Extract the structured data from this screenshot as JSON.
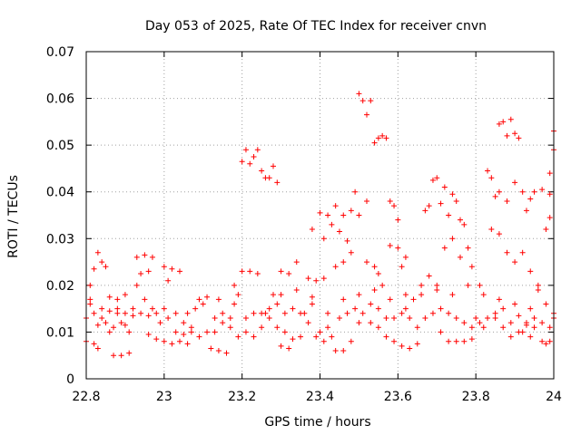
{
  "chart_data": {
    "type": "scatter",
    "title": "Day 053 of 2025, Rate Of TEC Index for receiver cnvn",
    "xlabel": "GPS time / hours",
    "ylabel": "ROTI / TECUs",
    "xlim": [
      22.8,
      24
    ],
    "ylim": [
      0,
      0.07
    ],
    "x_ticks": [
      {
        "v": 22.8,
        "label": "22.8"
      },
      {
        "v": 23,
        "label": "23"
      },
      {
        "v": 23.2,
        "label": "23.2"
      },
      {
        "v": 23.4,
        "label": "23.4"
      },
      {
        "v": 23.6,
        "label": "23.6"
      },
      {
        "v": 23.8,
        "label": "23.8"
      },
      {
        "v": 24,
        "label": "24"
      }
    ],
    "y_ticks": [
      {
        "v": 0,
        "label": "0"
      },
      {
        "v": 0.01,
        "label": "0.01"
      },
      {
        "v": 0.02,
        "label": "0.02"
      },
      {
        "v": 0.03,
        "label": "0.03"
      },
      {
        "v": 0.04,
        "label": "0.04"
      },
      {
        "v": 0.05,
        "label": "0.05"
      },
      {
        "v": 0.06,
        "label": "0.06"
      },
      {
        "v": 0.07,
        "label": "0.07"
      }
    ],
    "grid": true,
    "marker": "plus",
    "color": "#ff0000",
    "points": [
      [
        22.8,
        0.008
      ],
      [
        22.81,
        0.02
      ],
      [
        22.82,
        0.0235
      ],
      [
        22.83,
        0.027
      ],
      [
        22.84,
        0.025
      ],
      [
        22.85,
        0.024
      ],
      [
        22.83,
        0.0065
      ],
      [
        22.82,
        0.0075
      ],
      [
        22.8,
        0.013
      ],
      [
        22.82,
        0.014
      ],
      [
        22.84,
        0.015
      ],
      [
        22.86,
        0.0145
      ],
      [
        22.88,
        0.015
      ],
      [
        22.81,
        0.016
      ],
      [
        22.83,
        0.0115
      ],
      [
        22.85,
        0.012
      ],
      [
        22.87,
        0.011
      ],
      [
        22.89,
        0.012
      ],
      [
        22.91,
        0.01
      ],
      [
        22.86,
        0.0175
      ],
      [
        22.88,
        0.017
      ],
      [
        22.9,
        0.018
      ],
      [
        22.87,
        0.005
      ],
      [
        22.89,
        0.005
      ],
      [
        22.91,
        0.0055
      ],
      [
        22.9,
        0.014
      ],
      [
        22.92,
        0.0135
      ],
      [
        22.93,
        0.026
      ],
      [
        22.95,
        0.0265
      ],
      [
        22.97,
        0.026
      ],
      [
        22.94,
        0.0225
      ],
      [
        22.96,
        0.023
      ],
      [
        22.93,
        0.02
      ],
      [
        22.95,
        0.017
      ],
      [
        22.97,
        0.015
      ],
      [
        22.99,
        0.012
      ],
      [
        22.96,
        0.0095
      ],
      [
        22.98,
        0.0085
      ],
      [
        23.0,
        0.008
      ],
      [
        23.0,
        0.024
      ],
      [
        23.02,
        0.0235
      ],
      [
        23.04,
        0.023
      ],
      [
        23.01,
        0.021
      ],
      [
        23.03,
        0.014
      ],
      [
        23.05,
        0.012
      ],
      [
        23.07,
        0.011
      ],
      [
        23.02,
        0.0075
      ],
      [
        23.04,
        0.008
      ],
      [
        23.06,
        0.0075
      ],
      [
        23.08,
        0.015
      ],
      [
        23.1,
        0.016
      ],
      [
        23.09,
        0.017
      ],
      [
        23.11,
        0.0175
      ],
      [
        23.12,
        0.0065
      ],
      [
        23.14,
        0.006
      ],
      [
        23.16,
        0.0055
      ],
      [
        23.13,
        0.01
      ],
      [
        23.15,
        0.012
      ],
      [
        23.17,
        0.013
      ],
      [
        23.19,
        0.018
      ],
      [
        23.18,
        0.02
      ],
      [
        23.2,
        0.023
      ],
      [
        23.22,
        0.023
      ],
      [
        23.24,
        0.0225
      ],
      [
        23.2,
        0.0465
      ],
      [
        23.21,
        0.049
      ],
      [
        23.22,
        0.046
      ],
      [
        23.23,
        0.0475
      ],
      [
        23.24,
        0.049
      ],
      [
        23.25,
        0.0445
      ],
      [
        23.26,
        0.043
      ],
      [
        23.27,
        0.043
      ],
      [
        23.28,
        0.0455
      ],
      [
        23.29,
        0.042
      ],
      [
        23.21,
        0.01
      ],
      [
        23.23,
        0.009
      ],
      [
        23.25,
        0.011
      ],
      [
        23.27,
        0.015
      ],
      [
        23.29,
        0.016
      ],
      [
        23.26,
        0.014
      ],
      [
        23.28,
        0.018
      ],
      [
        23.3,
        0.023
      ],
      [
        23.32,
        0.0225
      ],
      [
        23.34,
        0.025
      ],
      [
        23.31,
        0.01
      ],
      [
        23.33,
        0.0085
      ],
      [
        23.35,
        0.009
      ],
      [
        23.3,
        0.007
      ],
      [
        23.32,
        0.0065
      ],
      [
        23.36,
        0.014
      ],
      [
        23.38,
        0.0175
      ],
      [
        23.37,
        0.0215
      ],
      [
        23.39,
        0.021
      ],
      [
        23.41,
        0.0215
      ],
      [
        23.38,
        0.032
      ],
      [
        23.4,
        0.0355
      ],
      [
        23.42,
        0.035
      ],
      [
        23.44,
        0.037
      ],
      [
        23.46,
        0.035
      ],
      [
        23.48,
        0.036
      ],
      [
        23.43,
        0.033
      ],
      [
        23.45,
        0.0315
      ],
      [
        23.47,
        0.0295
      ],
      [
        23.41,
        0.03
      ],
      [
        23.49,
        0.04
      ],
      [
        23.5,
        0.035
      ],
      [
        23.52,
        0.038
      ],
      [
        23.44,
        0.024
      ],
      [
        23.46,
        0.025
      ],
      [
        23.48,
        0.027
      ],
      [
        23.42,
        0.011
      ],
      [
        23.44,
        0.006
      ],
      [
        23.46,
        0.006
      ],
      [
        23.48,
        0.008
      ],
      [
        23.5,
        0.012
      ],
      [
        23.4,
        0.01
      ],
      [
        23.5,
        0.061
      ],
      [
        23.51,
        0.0595
      ],
      [
        23.52,
        0.0565
      ],
      [
        23.53,
        0.0595
      ],
      [
        23.54,
        0.0505
      ],
      [
        23.55,
        0.0515
      ],
      [
        23.56,
        0.052
      ],
      [
        23.57,
        0.0515
      ],
      [
        23.52,
        0.025
      ],
      [
        23.54,
        0.024
      ],
      [
        23.56,
        0.02
      ],
      [
        23.55,
        0.0225
      ],
      [
        23.53,
        0.016
      ],
      [
        23.55,
        0.015
      ],
      [
        23.57,
        0.013
      ],
      [
        23.58,
        0.038
      ],
      [
        23.59,
        0.037
      ],
      [
        23.6,
        0.034
      ],
      [
        23.58,
        0.0285
      ],
      [
        23.6,
        0.028
      ],
      [
        23.62,
        0.026
      ],
      [
        23.61,
        0.024
      ],
      [
        23.59,
        0.008
      ],
      [
        23.61,
        0.007
      ],
      [
        23.63,
        0.0065
      ],
      [
        23.65,
        0.0075
      ],
      [
        23.62,
        0.015
      ],
      [
        23.64,
        0.017
      ],
      [
        23.66,
        0.018
      ],
      [
        23.67,
        0.036
      ],
      [
        23.68,
        0.037
      ],
      [
        23.69,
        0.0425
      ],
      [
        23.7,
        0.043
      ],
      [
        23.71,
        0.0375
      ],
      [
        23.72,
        0.041
      ],
      [
        23.74,
        0.0395
      ],
      [
        23.73,
        0.035
      ],
      [
        23.75,
        0.038
      ],
      [
        23.76,
        0.034
      ],
      [
        23.77,
        0.033
      ],
      [
        23.78,
        0.028
      ],
      [
        23.79,
        0.024
      ],
      [
        23.68,
        0.022
      ],
      [
        23.7,
        0.02
      ],
      [
        23.72,
        0.028
      ],
      [
        23.74,
        0.03
      ],
      [
        23.76,
        0.026
      ],
      [
        23.71,
        0.01
      ],
      [
        23.73,
        0.008
      ],
      [
        23.75,
        0.008
      ],
      [
        23.77,
        0.008
      ],
      [
        23.79,
        0.0085
      ],
      [
        23.8,
        0.013
      ],
      [
        23.82,
        0.011
      ],
      [
        23.81,
        0.02
      ],
      [
        23.83,
        0.0445
      ],
      [
        23.84,
        0.043
      ],
      [
        23.85,
        0.039
      ],
      [
        23.86,
        0.0545
      ],
      [
        23.87,
        0.055
      ],
      [
        23.88,
        0.052
      ],
      [
        23.89,
        0.0555
      ],
      [
        23.9,
        0.0525
      ],
      [
        23.91,
        0.0515
      ],
      [
        23.86,
        0.04
      ],
      [
        23.88,
        0.038
      ],
      [
        23.9,
        0.042
      ],
      [
        23.92,
        0.04
      ],
      [
        23.94,
        0.0385
      ],
      [
        23.93,
        0.036
      ],
      [
        23.95,
        0.04
      ],
      [
        23.97,
        0.0405
      ],
      [
        23.99,
        0.0395
      ],
      [
        23.84,
        0.032
      ],
      [
        23.86,
        0.031
      ],
      [
        23.88,
        0.027
      ],
      [
        23.9,
        0.025
      ],
      [
        23.92,
        0.027
      ],
      [
        23.94,
        0.023
      ],
      [
        23.96,
        0.02
      ],
      [
        23.98,
        0.016
      ],
      [
        23.85,
        0.013
      ],
      [
        23.87,
        0.015
      ],
      [
        23.89,
        0.012
      ],
      [
        23.91,
        0.0135
      ],
      [
        23.93,
        0.0115
      ],
      [
        23.95,
        0.011
      ],
      [
        23.97,
        0.008
      ],
      [
        23.98,
        0.0075
      ],
      [
        23.99,
        0.008
      ],
      [
        24.0,
        0.053
      ],
      [
        24.0,
        0.049
      ],
      [
        23.99,
        0.044
      ],
      [
        23.98,
        0.032
      ],
      [
        23.99,
        0.0345
      ],
      [
        24.0,
        0.014
      ],
      [
        24.0,
        0.013
      ],
      [
        23.96,
        0.019
      ],
      [
        23.92,
        0.01
      ],
      [
        23.94,
        0.009
      ],
      [
        22.81,
        0.017
      ],
      [
        22.84,
        0.013
      ],
      [
        22.86,
        0.01
      ],
      [
        22.88,
        0.014
      ],
      [
        22.92,
        0.015
      ],
      [
        22.94,
        0.014
      ],
      [
        22.96,
        0.0135
      ],
      [
        22.98,
        0.014
      ],
      [
        23.0,
        0.015
      ],
      [
        23.01,
        0.013
      ],
      [
        23.03,
        0.01
      ],
      [
        23.05,
        0.0095
      ],
      [
        23.07,
        0.01
      ],
      [
        23.09,
        0.009
      ],
      [
        23.11,
        0.01
      ],
      [
        23.13,
        0.013
      ],
      [
        23.15,
        0.014
      ],
      [
        23.17,
        0.011
      ],
      [
        23.19,
        0.009
      ],
      [
        23.21,
        0.013
      ],
      [
        23.23,
        0.014
      ],
      [
        23.25,
        0.014
      ],
      [
        23.27,
        0.013
      ],
      [
        23.29,
        0.011
      ],
      [
        23.31,
        0.014
      ],
      [
        23.33,
        0.015
      ],
      [
        23.35,
        0.014
      ],
      [
        23.37,
        0.012
      ],
      [
        23.39,
        0.009
      ],
      [
        23.41,
        0.008
      ],
      [
        23.43,
        0.009
      ],
      [
        23.45,
        0.013
      ],
      [
        23.47,
        0.014
      ],
      [
        23.49,
        0.015
      ],
      [
        23.51,
        0.014
      ],
      [
        23.53,
        0.012
      ],
      [
        23.55,
        0.011
      ],
      [
        23.57,
        0.009
      ],
      [
        23.59,
        0.013
      ],
      [
        23.61,
        0.014
      ],
      [
        23.63,
        0.013
      ],
      [
        23.65,
        0.011
      ],
      [
        23.67,
        0.013
      ],
      [
        23.69,
        0.014
      ],
      [
        23.71,
        0.015
      ],
      [
        23.73,
        0.014
      ],
      [
        23.75,
        0.013
      ],
      [
        23.77,
        0.012
      ],
      [
        23.79,
        0.011
      ],
      [
        23.81,
        0.012
      ],
      [
        23.83,
        0.013
      ],
      [
        23.85,
        0.014
      ],
      [
        23.87,
        0.011
      ],
      [
        23.89,
        0.009
      ],
      [
        23.91,
        0.01
      ],
      [
        23.93,
        0.012
      ],
      [
        23.95,
        0.013
      ],
      [
        23.97,
        0.012
      ],
      [
        23.99,
        0.011
      ],
      [
        22.9,
        0.0115
      ],
      [
        23.06,
        0.014
      ],
      [
        23.14,
        0.017
      ],
      [
        23.18,
        0.016
      ],
      [
        23.3,
        0.018
      ],
      [
        23.34,
        0.019
      ],
      [
        23.38,
        0.016
      ],
      [
        23.42,
        0.014
      ],
      [
        23.46,
        0.017
      ],
      [
        23.5,
        0.018
      ],
      [
        23.54,
        0.019
      ],
      [
        23.58,
        0.017
      ],
      [
        23.62,
        0.018
      ],
      [
        23.66,
        0.02
      ],
      [
        23.7,
        0.019
      ],
      [
        23.74,
        0.018
      ],
      [
        23.78,
        0.02
      ],
      [
        23.82,
        0.018
      ],
      [
        23.86,
        0.017
      ],
      [
        23.9,
        0.016
      ],
      [
        23.94,
        0.015
      ]
    ]
  }
}
